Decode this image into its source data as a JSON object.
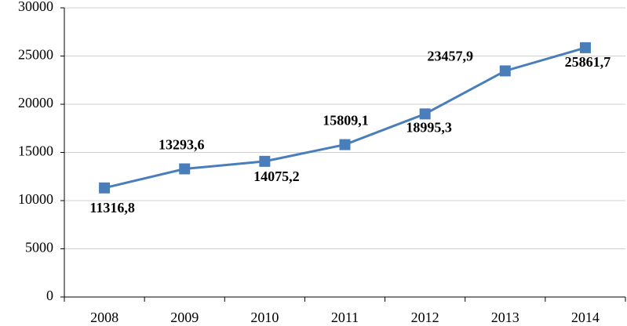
{
  "chart_data": {
    "type": "line",
    "categories": [
      "2008",
      "2009",
      "2010",
      "2011",
      "2012",
      "2013",
      "2014"
    ],
    "series": [
      {
        "color": "#4a7ebb",
        "values": [
          11316.8,
          13293.6,
          14075.2,
          15809.1,
          18995.3,
          23457.9,
          25861.7
        ],
        "value_labels": [
          "11316,8",
          "13293,6",
          "14075,2",
          "15809,1",
          "18995,3",
          "23457,9",
          "25861,7"
        ]
      }
    ],
    "ylim": [
      0,
      30000
    ],
    "yticks": [
      0,
      5000,
      10000,
      15000,
      20000,
      25000,
      30000
    ],
    "grid": true
  }
}
